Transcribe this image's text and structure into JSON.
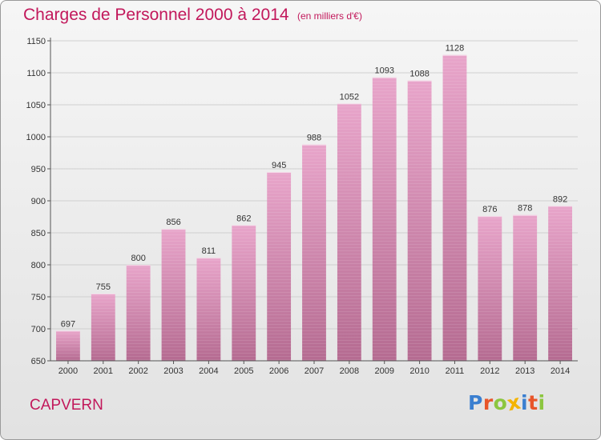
{
  "title": "Charges de Personnel 2000 à 2014",
  "subtitle": "(en milliers d'€)",
  "commune": "CAPVERN",
  "logo": {
    "text": "Proxiti",
    "letter_colors": [
      "#3a7fd0",
      "#e8562a",
      "#8cc63f",
      "#f4b400",
      "#3a7fd0",
      "#e8562a",
      "#8cc63f"
    ]
  },
  "colors": {
    "title": "#c2185b",
    "bar_top": "#e8a5ca",
    "bar_bottom": "#b56b91",
    "axis": "#555555",
    "grid": "#cfcfcf"
  },
  "chart_data": {
    "type": "bar",
    "title": "Charges de Personnel 2000 à 2014",
    "subtitle": "(en milliers d'€)",
    "categories": [
      "2000",
      "2001",
      "2002",
      "2003",
      "2004",
      "2005",
      "2006",
      "2007",
      "2008",
      "2009",
      "2010",
      "2011",
      "2012",
      "2013",
      "2014"
    ],
    "values": [
      697,
      755,
      800,
      856,
      811,
      862,
      945,
      988,
      1052,
      1093,
      1088,
      1128,
      876,
      878,
      892
    ],
    "ylim": [
      650,
      1150
    ],
    "yticks": [
      650,
      700,
      750,
      800,
      850,
      900,
      950,
      1000,
      1050,
      1100,
      1150
    ],
    "xlabel": "",
    "ylabel": "",
    "grid": "horizontal",
    "data_labels": true
  }
}
